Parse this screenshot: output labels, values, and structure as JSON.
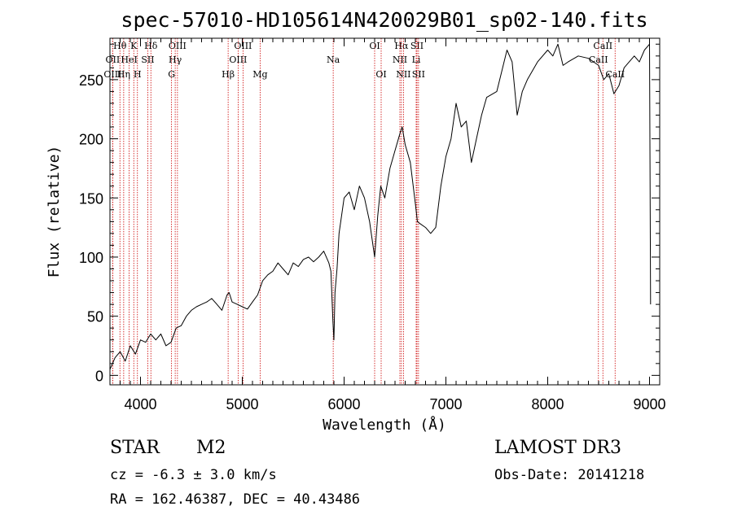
{
  "chart_data": {
    "type": "line",
    "title": "spec-57010-HD105614N420029B01_sp02-140.fits",
    "xlabel": "Wavelength (Å)",
    "ylabel": "Flux (relative)",
    "xlim": [
      3700,
      9100
    ],
    "ylim": [
      -8,
      285
    ],
    "x_ticks": [
      4000,
      5000,
      6000,
      7000,
      8000,
      9000
    ],
    "y_ticks": [
      0,
      50,
      100,
      150,
      200,
      250
    ],
    "grid": false,
    "series": [
      {
        "x": [
          3700,
          3750,
          3800,
          3850,
          3900,
          3950,
          4000,
          4050,
          4100,
          4150,
          4200,
          4250,
          4300,
          4350,
          4400,
          4450,
          4500,
          4550,
          4600,
          4650,
          4700,
          4750,
          4800,
          4850,
          4870,
          4900,
          4950,
          5000,
          5050,
          5100,
          5150,
          5200,
          5250,
          5300,
          5350,
          5400,
          5450,
          5500,
          5550,
          5600,
          5650,
          5700,
          5750,
          5800,
          5850,
          5870,
          5890,
          5900,
          5910,
          5930,
          5950,
          6000,
          6050,
          6100,
          6150,
          6200,
          6250,
          6300,
          6330,
          6360,
          6400,
          6450,
          6500,
          6550,
          6570,
          6600,
          6650,
          6700,
          6720,
          6750,
          6800,
          6850,
          6900,
          6950,
          7000,
          7050,
          7100,
          7150,
          7200,
          7250,
          7300,
          7350,
          7400,
          7500,
          7600,
          7650,
          7700,
          7750,
          7800,
          7900,
          8000,
          8050,
          8100,
          8150,
          8200,
          8300,
          8400,
          8500,
          8550,
          8600,
          8650,
          8700,
          8750,
          8800,
          8850,
          8900,
          8950,
          9000,
          9010
        ],
        "y": [
          5,
          15,
          20,
          12,
          25,
          18,
          30,
          28,
          35,
          30,
          35,
          25,
          28,
          40,
          42,
          50,
          55,
          58,
          60,
          62,
          65,
          60,
          55,
          68,
          70,
          62,
          60,
          58,
          56,
          62,
          68,
          80,
          85,
          88,
          95,
          90,
          85,
          95,
          92,
          98,
          100,
          96,
          100,
          105,
          95,
          88,
          45,
          30,
          70,
          90,
          120,
          150,
          155,
          140,
          160,
          150,
          130,
          100,
          135,
          160,
          150,
          175,
          190,
          205,
          210,
          195,
          180,
          145,
          130,
          128,
          125,
          120,
          125,
          160,
          185,
          200,
          230,
          210,
          215,
          180,
          200,
          220,
          235,
          240,
          275,
          265,
          220,
          240,
          250,
          265,
          275,
          270,
          280,
          262,
          265,
          270,
          268,
          262,
          250,
          255,
          238,
          245,
          260,
          265,
          270,
          265,
          275,
          280,
          60
        ]
      }
    ],
    "line_markers": [
      {
        "label": "Hθ",
        "x": 3798,
        "row": 0
      },
      {
        "label": "OII",
        "x": 3727,
        "row": 1
      },
      {
        "label": "OIII",
        "x": 3727,
        "row": 2
      },
      {
        "label": "K",
        "x": 3934,
        "row": 0
      },
      {
        "label": "HeI",
        "x": 3889,
        "row": 1
      },
      {
        "label": "Hη",
        "x": 3835,
        "row": 2
      },
      {
        "label": "Hδ",
        "x": 4102,
        "row": 0
      },
      {
        "label": "SII",
        "x": 4072,
        "row": 1
      },
      {
        "label": "H",
        "x": 3970,
        "row": 2
      },
      {
        "label": "OIII",
        "x": 4363,
        "row": 0
      },
      {
        "label": "Hγ",
        "x": 4341,
        "row": 1
      },
      {
        "label": "G",
        "x": 4305,
        "row": 2
      },
      {
        "label": "OIII",
        "x": 5007,
        "row": 0
      },
      {
        "label": "OIII",
        "x": 4959,
        "row": 1
      },
      {
        "label": "Hβ",
        "x": 4861,
        "row": 2
      },
      {
        "label": "Mg",
        "x": 5175,
        "row": 2
      },
      {
        "label": "Na",
        "x": 5893,
        "row": 1
      },
      {
        "label": "OI",
        "x": 6300,
        "row": 0
      },
      {
        "label": "OI",
        "x": 6364,
        "row": 2
      },
      {
        "label": "Hα",
        "x": 6563,
        "row": 0
      },
      {
        "label": "SII",
        "x": 6716,
        "row": 0
      },
      {
        "label": "NII",
        "x": 6548,
        "row": 1
      },
      {
        "label": "Li",
        "x": 6708,
        "row": 1
      },
      {
        "label": "NII",
        "x": 6583,
        "row": 2
      },
      {
        "label": "SII",
        "x": 6731,
        "row": 2
      },
      {
        "label": "CaII",
        "x": 8542,
        "row": 0
      },
      {
        "label": "CaII",
        "x": 8498,
        "row": 1
      },
      {
        "label": "CaII",
        "x": 8662,
        "row": 2
      }
    ],
    "colors": {
      "spectrum": "#000000",
      "markers": "#cc0000",
      "axes": "#000000"
    }
  },
  "info": {
    "object_class": "STAR",
    "subclass": "M2",
    "survey": "LAMOST DR3",
    "redshift": "cz = -6.3 ± 3.0 km/s",
    "obs_date": "Obs-Date: 20141218",
    "coords": "RA = 162.46387, DEC =  40.43486"
  }
}
